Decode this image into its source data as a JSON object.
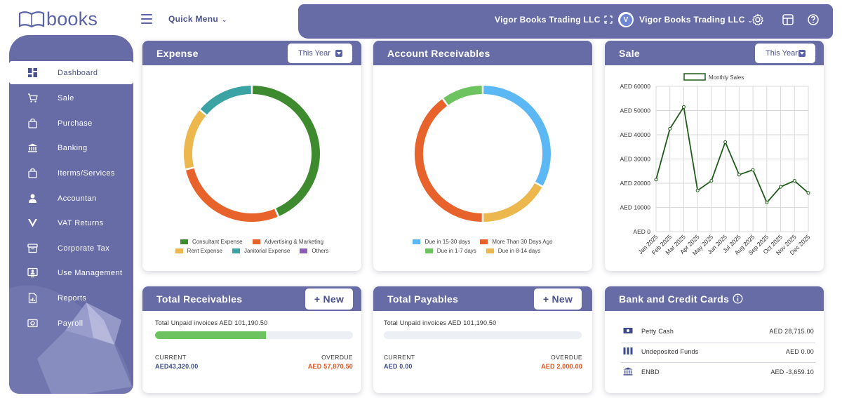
{
  "app": {
    "logo_text": "books",
    "quick_menu": "Quick Menu"
  },
  "header": {
    "company_select": "Vigor Books Trading LLC",
    "org_avatar_letter": "V",
    "org_name": "Vigor Books Trading LLC"
  },
  "sidebar": {
    "items": [
      {
        "label": "Dashboard",
        "icon": "dashboard-icon"
      },
      {
        "label": "Sale",
        "icon": "cart-icon"
      },
      {
        "label": "Purchase",
        "icon": "bag-icon"
      },
      {
        "label": "Banking",
        "icon": "bank-icon"
      },
      {
        "label": "Iterms/Services",
        "icon": "bag-icon"
      },
      {
        "label": "Accountan",
        "icon": "user-icon"
      },
      {
        "label": "VAT Returns",
        "icon": "vat-icon"
      },
      {
        "label": "Corporate Tax",
        "icon": "archive-icon"
      },
      {
        "label": "Use Management",
        "icon": "user-card-icon"
      },
      {
        "label": "Reports",
        "icon": "report-icon"
      },
      {
        "label": "Payroll",
        "icon": "payroll-icon"
      }
    ]
  },
  "expense": {
    "title": "Expense",
    "period": "This Year",
    "legend": [
      "Consultant Expense",
      "Advertising & Marketing",
      "Rent Expense",
      "Janitorial Expense",
      "Others"
    ]
  },
  "receivables_chart": {
    "title": "Account Receivables",
    "legend": [
      "Due in 15-30 days",
      "More Than 30 Days Ago",
      "Due in 1-7 days",
      "Due in 8-14 days"
    ]
  },
  "sale": {
    "title": "Sale",
    "period": "This Year"
  },
  "total_receivables": {
    "title": "Total Receivables",
    "new_label": "+ New",
    "unpaid": "Total Unpaid invoices AED 101,190.50",
    "progress": 0.56,
    "current_label": "CURRENT",
    "current_value": "AED43,320.00",
    "overdue_label": "OVERDUE",
    "overdue_value": "AED 57,870.50"
  },
  "total_payables": {
    "title": "Total Payables",
    "new_label": "+ New",
    "unpaid": "Total Unpaid invoices AED 101,190.50",
    "progress": 0,
    "current_label": "CURRENT",
    "current_value": "AED 0.00",
    "overdue_label": "OVERDUE",
    "overdue_value": "AED 2,000.00"
  },
  "bank": {
    "title": "Bank and Credit Cards",
    "info_icon": "info-icon",
    "rows": [
      {
        "name": "Petty Cash",
        "value": "AED 28,715.00",
        "icon": "cash-icon"
      },
      {
        "name": "Undeposited Funds",
        "value": "AED 0.00",
        "icon": "funds-icon"
      },
      {
        "name": "ENBD",
        "value": "AED -3,659.10",
        "icon": "bank-icon"
      }
    ]
  },
  "colors": {
    "primary": "#676ba6",
    "green": "#3d8a2f",
    "orange": "#e8632b",
    "yellow": "#ecb74c",
    "teal": "#3ba3a3",
    "purple": "#8b5db6",
    "blue": "#5bb8f5",
    "lightgreen": "#6cc35f",
    "red": "#e0521d",
    "navy": "#3d4a8a"
  },
  "chart_data": [
    {
      "type": "pie",
      "title": "Expense",
      "categories": [
        "Consultant Expense",
        "Advertising & Marketing",
        "Rent Expense",
        "Janitorial Expense",
        "Others"
      ],
      "values": [
        41,
        26,
        14,
        13,
        0
      ],
      "colors": [
        "#3d8a2f",
        "#e8632b",
        "#ecb74c",
        "#3ba3a3",
        "#8b5db6"
      ]
    },
    {
      "type": "pie",
      "title": "Account Receivables",
      "categories": [
        "Due in 15-30 days",
        "Due in 8-14 days",
        "More Than 30 Days Ago",
        "Due in 1-7 days"
      ],
      "values": [
        33,
        17,
        40,
        10
      ],
      "colors": [
        "#5bb8f5",
        "#ecb74c",
        "#e8632b",
        "#6cc35f"
      ]
    },
    {
      "type": "line",
      "title": "Sale",
      "legend": "Monthly Sales",
      "categories": [
        "Jan 2025",
        "Feb 2025",
        "Mar 2025",
        "Apr 2025",
        "May 2025",
        "Jun 2025",
        "Jul 2025",
        "Aug 2025",
        "Sep 2025",
        "Oct 2025",
        "Nov 2025",
        "Dec 2025"
      ],
      "values": [
        21500,
        42500,
        51500,
        17000,
        21000,
        37000,
        23500,
        25500,
        12000,
        18500,
        21000,
        16000
      ],
      "ylim": [
        0,
        60000
      ],
      "yticks": [
        0,
        10000,
        20000,
        30000,
        40000,
        50000,
        60000
      ],
      "ytick_labels": [
        "AED 0",
        "AED 10000",
        "AED 20000",
        "AED 30000",
        "AED 40000",
        "AED 50000",
        "AED 60000"
      ],
      "color": "#1f5c1a"
    }
  ]
}
